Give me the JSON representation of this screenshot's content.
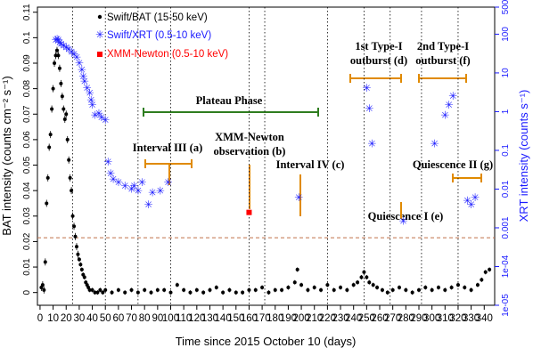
{
  "chart_data": {
    "type": "scatter",
    "xlabel": "Time since 2015 October 10 (days)",
    "ylabel_left": "BAT intensity (counts cm⁻² s⁻¹)",
    "ylabel_right": "XRT intensity (counts s⁻¹)",
    "xlim": [
      -2,
      348
    ],
    "ylim_left": [
      -0.005,
      0.112
    ],
    "ylim_right_log": [
      1e-05,
      500
    ],
    "x_ticks": [
      "0",
      "10",
      "20",
      "30",
      "40",
      "50",
      "60",
      "70",
      "80",
      "90",
      "100",
      "110",
      "120",
      "130",
      "140",
      "150",
      "160",
      "170",
      "180",
      "190",
      "200",
      "210",
      "220",
      "230",
      "240",
      "250",
      "260",
      "270",
      "280",
      "290",
      "300",
      "310",
      "320",
      "330",
      "340"
    ],
    "y_ticks_left": [
      "0",
      "0.01",
      "0.02",
      "0.03",
      "0.04",
      "0.05",
      "0.06",
      "0.07",
      "0.08",
      "0.09",
      "0.1",
      "0.11"
    ],
    "y_ticks_right": [
      "1e-05",
      "1e-04",
      "0.001",
      "0.01",
      "0.1",
      "1",
      "10",
      "100",
      "500"
    ],
    "vlines": [
      25,
      50,
      75,
      100,
      160,
      172,
      220,
      248,
      268,
      292,
      320
    ],
    "hline_left": 0.0215,
    "colors": {
      "bat": "#000000",
      "xrt": "#1a1aff",
      "xmm": "#ff0000",
      "phase": "#2e7d1f",
      "interval": "#e08a00",
      "hline": "#c0704a"
    },
    "legend": [
      {
        "label": "Swift/BAT (15-50 keV)",
        "marker": "dot",
        "color": "#000000"
      },
      {
        "label": "Swift/XRT (0.5-10 keV)",
        "marker": "star",
        "color": "#1a1aff"
      },
      {
        "label": "XMM-Newton (0.5-10 keV)",
        "marker": "square",
        "color": "#ff0000"
      }
    ],
    "annotations": [
      {
        "text": "Plateau Phase"
      },
      {
        "text": "Interval III (a)"
      },
      {
        "text": "XMM-Newton"
      },
      {
        "text": "observation (b)"
      },
      {
        "text": "Interval IV (c)"
      },
      {
        "text": "1st Type-I"
      },
      {
        "text": "outburst (d)"
      },
      {
        "text": "2nd Type-I"
      },
      {
        "text": "outburst (f)"
      },
      {
        "text": "Quiescence I (e)"
      },
      {
        "text": "Quiescence II (g)"
      }
    ],
    "series": [
      {
        "name": "Swift/BAT (15-50 keV)",
        "points": [
          [
            1,
            0.002
          ],
          [
            2,
            0.003
          ],
          [
            3,
            0.001
          ],
          [
            4,
            0.012
          ],
          [
            5,
            0.035
          ],
          [
            6,
            0.045
          ],
          [
            7,
            0.057
          ],
          [
            8,
            0.062
          ],
          [
            9,
            0.072
          ],
          [
            10,
            0.08
          ],
          [
            11,
            0.09
          ],
          [
            12,
            0.093
          ],
          [
            13,
            0.095
          ],
          [
            14,
            0.093
          ],
          [
            15,
            0.088
          ],
          [
            16,
            0.082
          ],
          [
            17,
            0.077
          ],
          [
            18,
            0.072
          ],
          [
            19,
            0.068
          ],
          [
            20,
            0.07
          ],
          [
            21,
            0.06
          ],
          [
            22,
            0.052
          ],
          [
            23,
            0.045
          ],
          [
            24,
            0.04
          ],
          [
            25,
            0.03
          ],
          [
            26,
            0.026
          ],
          [
            27,
            0.022
          ],
          [
            28,
            0.018
          ],
          [
            29,
            0.015
          ],
          [
            30,
            0.013
          ],
          [
            31,
            0.011
          ],
          [
            32,
            0.009
          ],
          [
            33,
            0.007
          ],
          [
            34,
            0.006
          ],
          [
            35,
            0.004
          ],
          [
            36,
            0.003
          ],
          [
            37,
            0.002
          ],
          [
            38,
            0.001
          ],
          [
            40,
            0.001
          ],
          [
            42,
            0.0
          ],
          [
            44,
            0.0
          ],
          [
            46,
            0.001
          ],
          [
            48,
            0.0
          ],
          [
            50,
            0.001
          ],
          [
            55,
            0.0
          ],
          [
            60,
            0.001
          ],
          [
            65,
            0.0
          ],
          [
            70,
            0.001
          ],
          [
            75,
            0.0
          ],
          [
            80,
            0.001
          ],
          [
            85,
            0.0
          ],
          [
            90,
            0.001
          ],
          [
            95,
            0.001
          ],
          [
            100,
            0.0
          ],
          [
            105,
            0.003
          ],
          [
            110,
            0.001
          ],
          [
            115,
            0.0
          ],
          [
            120,
            0.001
          ],
          [
            125,
            0.0
          ],
          [
            130,
            0.001
          ],
          [
            135,
            0.002
          ],
          [
            140,
            0.0
          ],
          [
            145,
            0.001
          ],
          [
            150,
            0.0
          ],
          [
            155,
            0.0
          ],
          [
            160,
            0.001
          ],
          [
            165,
            0.001
          ],
          [
            170,
            0.002
          ],
          [
            175,
            0.0
          ],
          [
            180,
            0.001
          ],
          [
            185,
            0.001
          ],
          [
            190,
            0.002
          ],
          [
            195,
            0.004
          ],
          [
            197,
            0.009
          ],
          [
            200,
            0.003
          ],
          [
            205,
            0.001
          ],
          [
            210,
            0.002
          ],
          [
            215,
            0.001
          ],
          [
            220,
            0.003
          ],
          [
            225,
            0.001
          ],
          [
            230,
            0.002
          ],
          [
            235,
            0.001
          ],
          [
            240,
            0.003
          ],
          [
            243,
            0.004
          ],
          [
            246,
            0.006
          ],
          [
            248,
            0.008
          ],
          [
            250,
            0.006
          ],
          [
            252,
            0.004
          ],
          [
            255,
            0.003
          ],
          [
            258,
            0.002
          ],
          [
            262,
            0.001
          ],
          [
            266,
            0.0
          ],
          [
            270,
            0.001
          ],
          [
            275,
            0.002
          ],
          [
            280,
            0.001
          ],
          [
            285,
            0.0
          ],
          [
            290,
            0.001
          ],
          [
            295,
            0.002
          ],
          [
            300,
            0.001
          ],
          [
            305,
            0.002
          ],
          [
            310,
            0.001
          ],
          [
            315,
            0.002
          ],
          [
            320,
            0.003
          ],
          [
            325,
            0.002
          ],
          [
            330,
            0.001
          ],
          [
            335,
            0.003
          ],
          [
            338,
            0.005
          ],
          [
            341,
            0.008
          ],
          [
            344,
            0.009
          ]
        ]
      },
      {
        "name": "Swift/XRT (0.5-10 keV)",
        "points": [
          [
            12,
            70
          ],
          [
            13,
            75
          ],
          [
            14,
            70
          ],
          [
            15,
            60
          ],
          [
            16,
            55
          ],
          [
            18,
            50
          ],
          [
            20,
            45
          ],
          [
            22,
            40
          ],
          [
            24,
            35
          ],
          [
            26,
            30
          ],
          [
            28,
            25
          ],
          [
            30,
            18
          ],
          [
            32,
            12
          ],
          [
            33,
            8
          ],
          [
            34,
            6
          ],
          [
            36,
            4
          ],
          [
            38,
            3
          ],
          [
            39,
            2
          ],
          [
            40,
            1.5
          ],
          [
            42,
            0.8
          ],
          [
            45,
            0.9
          ],
          [
            47,
            0.7
          ],
          [
            50,
            0.6
          ],
          [
            52,
            0.05
          ],
          [
            54,
            0.025
          ],
          [
            56,
            0.018
          ],
          [
            60,
            0.015
          ],
          [
            65,
            0.012
          ],
          [
            70,
            0.01
          ],
          [
            72,
            0.012
          ],
          [
            75,
            0.009
          ],
          [
            78,
            0.015
          ],
          [
            83,
            0.004
          ],
          [
            86,
            0.008
          ],
          [
            92,
            0.009
          ],
          [
            98,
            0.015
          ],
          [
            198,
            0.006
          ],
          [
            250,
            4
          ],
          [
            252,
            1.2
          ],
          [
            254,
            0.15
          ],
          [
            278,
            0.0015
          ],
          [
            302,
            0.15
          ],
          [
            310,
            0.8
          ],
          [
            313,
            1.5
          ],
          [
            316,
            2.5
          ],
          [
            327,
            0.005
          ],
          [
            330,
            0.004
          ],
          [
            333,
            0.006
          ]
        ]
      },
      {
        "name": "XMM-Newton (0.5-10 keV)",
        "points": [
          [
            160,
            0.0025
          ]
        ]
      }
    ]
  }
}
